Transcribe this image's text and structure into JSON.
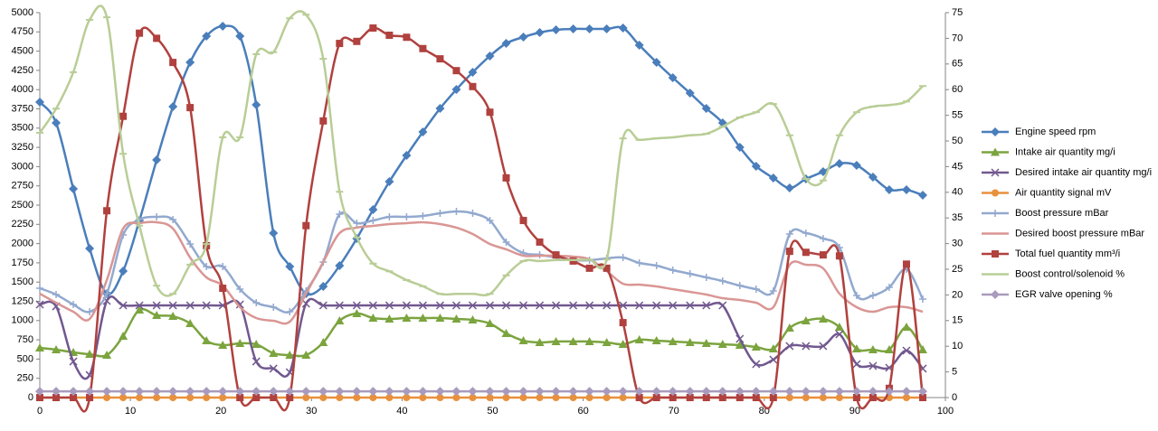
{
  "chart_data": {
    "type": "line",
    "smooth": true,
    "xlim": [
      0,
      100
    ],
    "xticks": [
      0,
      10,
      20,
      30,
      40,
      50,
      60,
      70,
      80,
      90,
      100
    ],
    "ylim": [
      0,
      5000
    ],
    "yticks": [
      0,
      250,
      500,
      750,
      1000,
      1250,
      1500,
      1750,
      2000,
      2250,
      2500,
      2750,
      3000,
      3250,
      3500,
      3750,
      4000,
      4250,
      4500,
      4750,
      5000
    ],
    "y2lim": [
      0,
      75
    ],
    "y2ticks": [
      0,
      5,
      10,
      15,
      20,
      25,
      30,
      35,
      40,
      45,
      50,
      55,
      60,
      65,
      70,
      75
    ],
    "grid": false,
    "legend": "right",
    "x": [
      0,
      1.8,
      3.7,
      5.5,
      7.4,
      9.2,
      11,
      12.9,
      14.7,
      16.6,
      18.4,
      20.2,
      22.1,
      23.9,
      25.8,
      27.6,
      29.4,
      31.3,
      33.1,
      35,
      36.8,
      38.6,
      40.5,
      42.3,
      44.2,
      46,
      47.8,
      49.7,
      51.5,
      53.4,
      55.2,
      57,
      58.9,
      60.7,
      62.6,
      64.4,
      66.2,
      68.1,
      69.9,
      71.8,
      73.6,
      75.4,
      77.3,
      79.1,
      81,
      82.8,
      84.6,
      86.5,
      88.3,
      90.2,
      92,
      93.8,
      95.7,
      97.5
    ],
    "series": [
      {
        "name": "Engine speed rpm",
        "color": "#4a7ebb",
        "marker": "diamond",
        "values": [
          3838,
          3568,
          2711,
          1937,
          1350,
          1643,
          2300,
          3087,
          3779,
          4354,
          4695,
          4824,
          4695,
          3803,
          2136,
          1702,
          1350,
          1444,
          1714,
          2066,
          2441,
          2805,
          3146,
          3451,
          3756,
          4002,
          4225,
          4437,
          4601,
          4683,
          4742,
          4777,
          4789,
          4789,
          4789,
          4800,
          4577,
          4354,
          4155,
          3955,
          3756,
          3568,
          3251,
          3005,
          2852,
          2723,
          2840,
          2934,
          3040,
          3016,
          2864,
          2700,
          2700,
          2629
        ]
      },
      {
        "name": "Intake air quantity mg/i",
        "color": "#7ba43e",
        "marker": "triangle",
        "values": [
          645,
          622,
          587,
          563,
          552,
          798,
          1138,
          1068,
          1056,
          962,
          739,
          681,
          704,
          692,
          575,
          552,
          552,
          716,
          998,
          1092,
          1033,
          1021,
          1033,
          1033,
          1033,
          1021,
          1009,
          962,
          833,
          739,
          716,
          728,
          728,
          728,
          716,
          692,
          751,
          739,
          728,
          716,
          704,
          692,
          681,
          657,
          634,
          904,
          998,
          1021,
          915,
          634,
          622,
          622,
          915,
          622
        ]
      },
      {
        "name": "Desired intake air quantity mg/i",
        "color": "#71588f",
        "marker": "x",
        "values": [
          1209,
          1185,
          469,
          293,
          1256,
          1197,
          1197,
          1197,
          1197,
          1197,
          1197,
          1197,
          1209,
          469,
          376,
          329,
          1221,
          1197,
          1197,
          1197,
          1197,
          1197,
          1197,
          1197,
          1197,
          1197,
          1197,
          1197,
          1197,
          1197,
          1197,
          1197,
          1197,
          1197,
          1197,
          1197,
          1197,
          1197,
          1197,
          1197,
          1197,
          1197,
          763,
          434,
          493,
          669,
          669,
          669,
          822,
          434,
          411,
          387,
          610,
          376
        ]
      },
      {
        "name": "Air quantity signal mV",
        "color": "#e8913c",
        "marker": "circle",
        "values": [
          0,
          0,
          0,
          0,
          0,
          0,
          0,
          0,
          0,
          0,
          0,
          0,
          0,
          0,
          0,
          0,
          0,
          0,
          0,
          0,
          0,
          0,
          0,
          0,
          0,
          0,
          0,
          0,
          0,
          0,
          0,
          0,
          0,
          0,
          0,
          0,
          0,
          0,
          0,
          0,
          0,
          0,
          0,
          0,
          0,
          0,
          0,
          0,
          0,
          0,
          0,
          0,
          0,
          0
        ]
      },
      {
        "name": "Boost pressure mBar",
        "color": "#93a9cf",
        "marker": "plus",
        "values": [
          1420,
          1338,
          1209,
          1115,
          1350,
          2113,
          2312,
          2347,
          2312,
          1995,
          1702,
          1702,
          1408,
          1232,
          1174,
          1115,
          1385,
          1761,
          2382,
          2265,
          2300,
          2347,
          2347,
          2359,
          2394,
          2418,
          2394,
          2300,
          2019,
          1878,
          1854,
          1819,
          1784,
          1784,
          1808,
          1819,
          1749,
          1714,
          1655,
          1608,
          1561,
          1514,
          1455,
          1408,
          1385,
          2124,
          2136,
          2066,
          1948,
          1326,
          1326,
          1432,
          1667,
          1279
        ]
      },
      {
        "name": "Desired boost pressure mBar",
        "color": "#d99694",
        "marker": "none",
        "values": [
          1350,
          1232,
          1115,
          1021,
          1526,
          2195,
          2265,
          2277,
          2195,
          1819,
          1561,
          1455,
          1174,
          1033,
          998,
          986,
          1350,
          1761,
          2136,
          2207,
          2230,
          2254,
          2265,
          2277,
          2254,
          2207,
          2124,
          1995,
          1925,
          1843,
          1843,
          1843,
          1831,
          1796,
          1643,
          1479,
          1467,
          1444,
          1408,
          1373,
          1338,
          1291,
          1268,
          1232,
          1174,
          1725,
          1725,
          1678,
          1350,
          1174,
          1115,
          1174,
          1174,
          1115
        ]
      },
      {
        "name": "Total fuel quantity mm³/i",
        "color": "#b0413e",
        "marker": "square",
        "axis": "y2",
        "values": [
          0,
          0,
          0,
          0,
          36.4,
          54.8,
          71,
          70,
          65.3,
          56.5,
          29.6,
          21.3,
          0,
          0,
          0,
          0,
          33.5,
          53.9,
          69,
          69.4,
          72,
          70.6,
          70.2,
          68,
          66,
          63.7,
          60.6,
          55.6,
          42.8,
          34.5,
          30.3,
          27.8,
          26.6,
          25.2,
          25.2,
          14.6,
          0,
          0,
          0,
          0,
          0,
          0,
          0,
          0,
          0,
          28.5,
          28.3,
          27.8,
          27.6,
          0,
          0,
          1.8,
          26,
          0
        ]
      },
      {
        "name": "Boost control/solenoid %",
        "color": "#b9cd96",
        "marker": "dash",
        "axis": "y2",
        "values": [
          51.6,
          56.3,
          63.4,
          73.6,
          74.1,
          47.5,
          33.5,
          21.8,
          20.2,
          25.9,
          29.9,
          50.7,
          50.7,
          66.9,
          67.3,
          73.9,
          74.6,
          66,
          40.1,
          31.2,
          26.1,
          24.6,
          22.9,
          21.7,
          20.2,
          20.2,
          20.2,
          20.2,
          23.8,
          26.6,
          26.6,
          26.8,
          26.8,
          26.9,
          26.9,
          50.5,
          50.2,
          50.5,
          50.7,
          51.1,
          51.4,
          52.8,
          54.6,
          55.6,
          57.2,
          51.1,
          42.6,
          42.3,
          51.1,
          55.6,
          56.7,
          57,
          57.7,
          60.7
        ]
      },
      {
        "name": "EGR valve opening %",
        "color": "#a99bbd",
        "marker": "diamond",
        "axis": "y2",
        "values": [
          1.2,
          1.2,
          1.2,
          1.2,
          1.2,
          1.2,
          1.2,
          1.2,
          1.2,
          1.2,
          1.2,
          1.2,
          1.2,
          1.2,
          1.2,
          1.2,
          1.2,
          1.2,
          1.2,
          1.2,
          1.2,
          1.2,
          1.2,
          1.2,
          1.2,
          1.2,
          1.2,
          1.2,
          1.2,
          1.2,
          1.2,
          1.2,
          1.2,
          1.2,
          1.2,
          1.2,
          1.2,
          1.2,
          1.2,
          1.2,
          1.2,
          1.2,
          1.2,
          1.2,
          1.2,
          1.2,
          1.2,
          1.2,
          1.2,
          1.2,
          1.2,
          1.2,
          1.2,
          1.2
        ]
      }
    ]
  }
}
